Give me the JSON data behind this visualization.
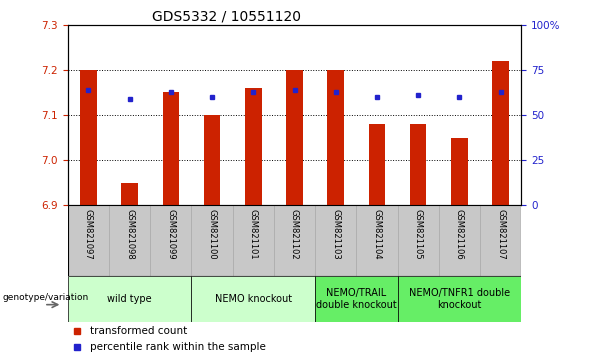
{
  "title": "GDS5332 / 10551120",
  "samples": [
    "GSM821097",
    "GSM821098",
    "GSM821099",
    "GSM821100",
    "GSM821101",
    "GSM821102",
    "GSM821103",
    "GSM821104",
    "GSM821105",
    "GSM821106",
    "GSM821107"
  ],
  "red_values": [
    7.2,
    6.95,
    7.15,
    7.1,
    7.16,
    7.2,
    7.2,
    7.08,
    7.08,
    7.05,
    7.22
  ],
  "blue_values": [
    7.155,
    7.135,
    7.15,
    7.14,
    7.15,
    7.155,
    7.15,
    7.14,
    7.145,
    7.14,
    7.15
  ],
  "ylim_left": [
    6.9,
    7.3
  ],
  "ylim_right": [
    0,
    100
  ],
  "yticks_left": [
    6.9,
    7.0,
    7.1,
    7.2,
    7.3
  ],
  "yticks_right": [
    0,
    25,
    50,
    75,
    100
  ],
  "bar_color": "#cc2200",
  "dot_color": "#2222cc",
  "baseline": 6.9,
  "group_spans": [
    {
      "start": 0,
      "end": 2,
      "label": "wild type",
      "color": "#ccffcc"
    },
    {
      "start": 3,
      "end": 5,
      "label": "NEMO knockout",
      "color": "#ccffcc"
    },
    {
      "start": 6,
      "end": 7,
      "label": "NEMO/TRAIL\ndouble knockout",
      "color": "#66ee66"
    },
    {
      "start": 8,
      "end": 10,
      "label": "NEMO/TNFR1 double\nknockout",
      "color": "#66ee66"
    }
  ],
  "legend_red": "transformed count",
  "legend_blue": "percentile rank within the sample",
  "genotype_label": "genotype/variation",
  "bg_color": "#ffffff",
  "sample_box_color": "#c8c8c8",
  "bar_width": 0.4,
  "title_fontsize": 10,
  "tick_fontsize": 7.5,
  "sample_fontsize": 6,
  "group_fontsize": 7,
  "legend_fontsize": 7.5
}
